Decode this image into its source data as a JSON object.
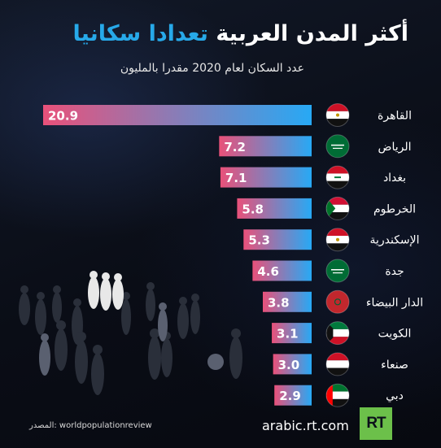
{
  "header": {
    "title_part1": "أكثر المدن العربية",
    "title_part2": "تعدادا سكانيا",
    "subtitle": "عدد السكان لعام 2020 مقدرا بالمليون"
  },
  "chart_data": {
    "type": "bar",
    "orientation": "horizontal",
    "categories": [
      "القاهرة",
      "الرياض",
      "بغداد",
      "الخرطوم",
      "الإسكندرية",
      "جدة",
      "الدار البيضاء",
      "الكويت",
      "صنعاء",
      "دبي"
    ],
    "countries": [
      "egypt",
      "saudi-arabia",
      "iraq",
      "sudan",
      "egypt",
      "saudi-arabia",
      "morocco",
      "kuwait",
      "yemen",
      "uae"
    ],
    "values": [
      20.9,
      7.2,
      7.1,
      5.8,
      5.3,
      4.6,
      3.8,
      3.1,
      3.0,
      2.9
    ],
    "value_labels": [
      "20.9",
      "7.2",
      "7.1",
      "5.8",
      "5.3",
      "4.6",
      "3.8",
      "3.1",
      "3.0",
      "2.9"
    ],
    "xlim": [
      0,
      20.9
    ],
    "bar_gradient": [
      "#e9517a",
      "#27a9f5"
    ],
    "grid": false,
    "legend": "none"
  },
  "footer": {
    "source": "المصدر: worldpopulationreview",
    "site": "arabic.rt.com",
    "logo": "RT"
  },
  "colors": {
    "accent": "#27a9e9",
    "brand_green": "#6cc04a",
    "background": "#0b0f1a"
  }
}
